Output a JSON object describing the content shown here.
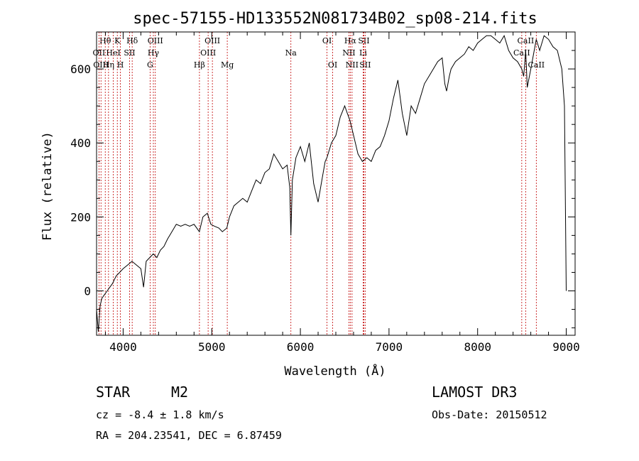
{
  "chart_data": {
    "type": "line",
    "title": "spec-57155-HD133552N081734B02_sp08-214.fits",
    "xlabel": "Wavelength (Å)",
    "ylabel": "Flux (relative)",
    "xlim": [
      3700,
      9100
    ],
    "ylim": [
      -120,
      700
    ],
    "xticks": [
      4000,
      5000,
      6000,
      7000,
      8000,
      9000
    ],
    "yticks": [
      0,
      200,
      400,
      600
    ],
    "series": [
      {
        "name": "spectrum",
        "color": "#000000",
        "x": [
          3700,
          3720,
          3740,
          3760,
          3790,
          3820,
          3850,
          3880,
          3920,
          3960,
          4000,
          4050,
          4100,
          4150,
          4200,
          4230,
          4260,
          4300,
          4340,
          4380,
          4420,
          4460,
          4500,
          4550,
          4600,
          4650,
          4700,
          4750,
          4800,
          4860,
          4900,
          4950,
          4990,
          5030,
          5080,
          5120,
          5170,
          5200,
          5250,
          5300,
          5350,
          5400,
          5450,
          5500,
          5550,
          5600,
          5650,
          5700,
          5750,
          5800,
          5850,
          5880,
          5893,
          5910,
          5950,
          6000,
          6050,
          6100,
          6150,
          6200,
          6250,
          6280,
          6300,
          6350,
          6400,
          6450,
          6500,
          6530,
          6560,
          6600,
          6650,
          6700,
          6750,
          6800,
          6850,
          6900,
          6950,
          7000,
          7050,
          7100,
          7150,
          7200,
          7250,
          7300,
          7350,
          7400,
          7450,
          7500,
          7550,
          7600,
          7630,
          7650,
          7680,
          7700,
          7750,
          7800,
          7850,
          7900,
          7950,
          8000,
          8050,
          8100,
          8150,
          8200,
          8250,
          8300,
          8350,
          8400,
          8450,
          8498,
          8520,
          8542,
          8560,
          8600,
          8662,
          8700,
          8750,
          8800,
          8850,
          8900,
          8950,
          8980,
          9000
        ],
        "y": [
          -50,
          -110,
          -40,
          -20,
          -10,
          0,
          10,
          20,
          40,
          50,
          60,
          70,
          80,
          70,
          60,
          10,
          80,
          90,
          100,
          90,
          110,
          120,
          140,
          160,
          180,
          175,
          180,
          175,
          180,
          160,
          200,
          210,
          180,
          175,
          170,
          160,
          170,
          200,
          230,
          240,
          250,
          240,
          270,
          300,
          290,
          320,
          330,
          370,
          350,
          330,
          340,
          280,
          150,
          300,
          360,
          390,
          350,
          400,
          290,
          240,
          310,
          350,
          360,
          400,
          420,
          470,
          500,
          480,
          460,
          420,
          370,
          350,
          360,
          350,
          380,
          390,
          420,
          460,
          520,
          570,
          480,
          420,
          500,
          480,
          520,
          560,
          580,
          600,
          620,
          630,
          560,
          540,
          580,
          600,
          620,
          630,
          640,
          660,
          650,
          670,
          680,
          690,
          690,
          680,
          670,
          690,
          650,
          630,
          620,
          600,
          580,
          650,
          550,
          600,
          680,
          650,
          690,
          680,
          660,
          650,
          600,
          500,
          0
        ]
      }
    ],
    "emission_lines": [
      {
        "name": "Hθ",
        "x": 3798,
        "row": 0
      },
      {
        "name": "OII",
        "x": 3727,
        "row": 1
      },
      {
        "name": "OIII",
        "x": 3750,
        "row": 2
      },
      {
        "name": "K",
        "x": 3934,
        "row": 0
      },
      {
        "name": "HeI",
        "x": 3889,
        "row": 1
      },
      {
        "name": "Hη",
        "x": 3835,
        "row": 2
      },
      {
        "name": "Hδ",
        "x": 4102,
        "row": 0
      },
      {
        "name": "SII",
        "x": 4072,
        "row": 1
      },
      {
        "name": "H",
        "x": 3969,
        "row": 2
      },
      {
        "name": "OIII",
        "x": 4363,
        "row": 0
      },
      {
        "name": "Hγ",
        "x": 4341,
        "row": 1
      },
      {
        "name": "G",
        "x": 4304,
        "row": 2
      },
      {
        "name": "OIII",
        "x": 5007,
        "row": 0
      },
      {
        "name": "OIII",
        "x": 4959,
        "row": 1
      },
      {
        "name": "Hβ",
        "x": 4861,
        "row": 2
      },
      {
        "name": "Mg",
        "x": 5175,
        "row": 2
      },
      {
        "name": "Na",
        "x": 5893,
        "row": 1
      },
      {
        "name": "OI",
        "x": 6300,
        "row": 0
      },
      {
        "name": "OI",
        "x": 6364,
        "row": 2
      },
      {
        "name": "Hα",
        "x": 6563,
        "row": 0
      },
      {
        "name": "SII",
        "x": 6716,
        "row": 0
      },
      {
        "name": "NII",
        "x": 6548,
        "row": 1
      },
      {
        "name": "Li",
        "x": 6708,
        "row": 1
      },
      {
        "name": "NII",
        "x": 6583,
        "row": 2
      },
      {
        "name": "SII",
        "x": 6731,
        "row": 2
      },
      {
        "name": "CaII",
        "x": 8542,
        "row": 0
      },
      {
        "name": "CaII",
        "x": 8498,
        "row": 1
      },
      {
        "name": "CaII",
        "x": 8662,
        "row": 2
      }
    ],
    "line_marker_color": "#c00000"
  },
  "info": {
    "class_label": "STAR",
    "subclass": "M2",
    "survey": "LAMOST DR3",
    "cz": "cz = -8.4 ± 1.8 km/s",
    "obs_date": "Obs-Date: 20150512",
    "coords": "RA = 204.23541, DEC =   6.87459"
  }
}
